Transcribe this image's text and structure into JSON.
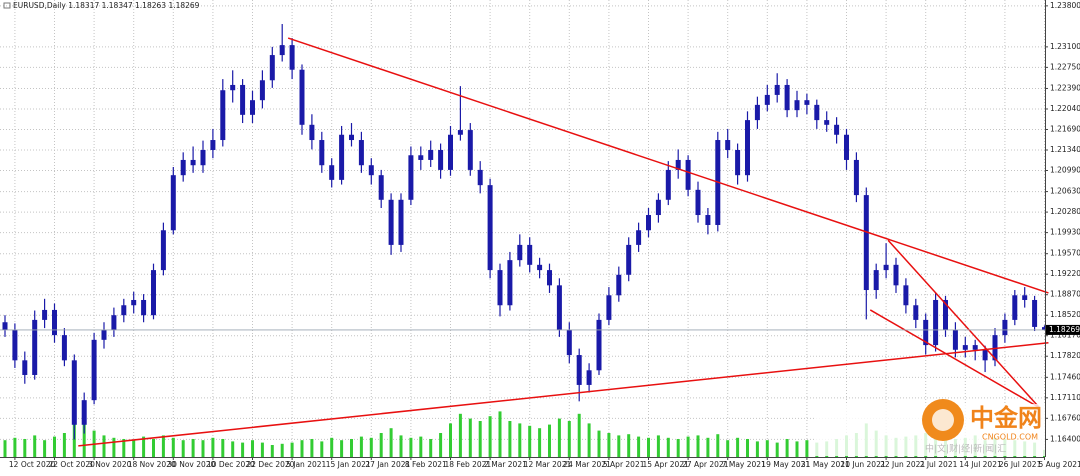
{
  "chart_data": {
    "type": "candlestick",
    "title": "EURUSD,Daily",
    "candle_color": "#1a1aa8",
    "volume_color": "#33cc33",
    "grid": true,
    "ylim": [
      1.161,
      1.239
    ],
    "yticks": [
      {
        "value": 1.238,
        "label": "1.23800"
      },
      {
        "value": 1.231,
        "label": "1.23100"
      },
      {
        "value": 1.2275,
        "label": "1.22750"
      },
      {
        "value": 1.2239,
        "label": "1.22390"
      },
      {
        "value": 1.2204,
        "label": "1.22040"
      },
      {
        "value": 1.2169,
        "label": "1.21690"
      },
      {
        "value": 1.2134,
        "label": "1.21340"
      },
      {
        "value": 1.2099,
        "label": "1.20990"
      },
      {
        "value": 1.2063,
        "label": "1.20630"
      },
      {
        "value": 1.2028,
        "label": "1.20280"
      },
      {
        "value": 1.1993,
        "label": "1.19930"
      },
      {
        "value": 1.1957,
        "label": "1.19570"
      },
      {
        "value": 1.1922,
        "label": "1.19220"
      },
      {
        "value": 1.1887,
        "label": "1.18870"
      },
      {
        "value": 1.1852,
        "label": "1.18520"
      },
      {
        "value": 1.1817,
        "label": "1.18170"
      },
      {
        "value": 1.1782,
        "label": "1.17820"
      },
      {
        "value": 1.1746,
        "label": "1.17460"
      },
      {
        "value": 1.1711,
        "label": "1.17110"
      },
      {
        "value": 1.1676,
        "label": "1.16760"
      },
      {
        "value": 1.164,
        "label": "1.16400"
      }
    ],
    "categories": [
      null,
      "12 Oct 2020",
      null,
      null,
      null,
      "22 Oct 2020",
      null,
      null,
      null,
      "3 Nov 2020",
      null,
      null,
      null,
      "18 Nov 2020",
      null,
      null,
      null,
      "30 Nov 2020",
      null,
      null,
      null,
      "10 Dec 2020",
      null,
      null,
      null,
      "22 Dec 2020",
      null,
      null,
      null,
      "5 Jan 2021",
      null,
      null,
      null,
      "15 Jan 2021",
      null,
      null,
      null,
      "27 Jan 2021",
      null,
      null,
      null,
      "8 Feb 2021",
      null,
      null,
      null,
      "18 Feb 2021",
      null,
      null,
      null,
      "2 Mar 2021",
      null,
      null,
      null,
      "12 Mar 2021",
      null,
      null,
      null,
      "24 Mar 2021",
      null,
      null,
      null,
      "5 Apr 2021",
      null,
      null,
      null,
      "15 Apr 2021",
      null,
      null,
      null,
      "27 Apr 2021",
      null,
      null,
      null,
      "7 May 2021",
      null,
      null,
      null,
      "19 May 2021",
      null,
      null,
      null,
      "31 May 2021",
      null,
      null,
      null,
      "10 Jun 2021",
      null,
      null,
      null,
      "22 Jun 2021",
      null,
      null,
      null,
      "2 Jul 2021",
      null,
      null,
      null,
      "14 Jul 2021",
      null,
      null,
      null,
      "26 Jul 2021",
      null,
      null,
      null,
      "5 Aug 2021"
    ],
    "candles": [
      [
        1.184,
        1.1852,
        1.1815,
        1.1827
      ],
      [
        1.1827,
        1.1838,
        1.1762,
        1.1775
      ],
      [
        1.1775,
        1.179,
        1.1735,
        1.175
      ],
      [
        1.175,
        1.186,
        1.1742,
        1.1844
      ],
      [
        1.1844,
        1.188,
        1.183,
        1.1861
      ],
      [
        1.1861,
        1.1872,
        1.1805,
        1.1818
      ],
      [
        1.1818,
        1.183,
        1.1765,
        1.1775
      ],
      [
        1.1775,
        1.1785,
        1.164,
        1.1665
      ],
      [
        1.1665,
        1.172,
        1.165,
        1.1707
      ],
      [
        1.1707,
        1.1822,
        1.17,
        1.181
      ],
      [
        1.181,
        1.184,
        1.1795,
        1.1827
      ],
      [
        1.1827,
        1.1865,
        1.1815,
        1.1852
      ],
      [
        1.1852,
        1.188,
        1.184,
        1.1869
      ],
      [
        1.1869,
        1.1892,
        1.1855,
        1.1878
      ],
      [
        1.1878,
        1.1888,
        1.184,
        1.1852
      ],
      [
        1.1852,
        1.194,
        1.1845,
        1.1929
      ],
      [
        1.1929,
        1.201,
        1.192,
        1.1997
      ],
      [
        1.1997,
        1.2105,
        1.199,
        1.2091
      ],
      [
        1.2091,
        1.213,
        1.208,
        1.2117
      ],
      [
        1.2117,
        1.214,
        1.2095,
        1.2108
      ],
      [
        1.2108,
        1.215,
        1.2095,
        1.2134
      ],
      [
        1.2134,
        1.217,
        1.212,
        1.2151
      ],
      [
        1.2151,
        1.2255,
        1.214,
        1.2236
      ],
      [
        1.2236,
        1.227,
        1.2215,
        1.2245
      ],
      [
        1.2245,
        1.2255,
        1.218,
        1.2194
      ],
      [
        1.2194,
        1.2235,
        1.218,
        1.2219
      ],
      [
        1.2219,
        1.227,
        1.2205,
        1.2253
      ],
      [
        1.2253,
        1.231,
        1.224,
        1.2296
      ],
      [
        1.2296,
        1.2349,
        1.2285,
        1.2313
      ],
      [
        1.2313,
        1.2325,
        1.2255,
        1.2271
      ],
      [
        1.2271,
        1.228,
        1.216,
        1.2177
      ],
      [
        1.2177,
        1.2195,
        1.2135,
        1.2151
      ],
      [
        1.2151,
        1.2165,
        1.2095,
        1.2108
      ],
      [
        1.2108,
        1.212,
        1.207,
        1.2083
      ],
      [
        1.2083,
        1.2175,
        1.2075,
        1.216
      ],
      [
        1.216,
        1.218,
        1.214,
        1.2151
      ],
      [
        1.2151,
        1.2165,
        1.2095,
        1.2108
      ],
      [
        1.2108,
        1.212,
        1.2075,
        1.2091
      ],
      [
        1.2091,
        1.21,
        1.2035,
        1.2049
      ],
      [
        1.2049,
        1.206,
        1.1955,
        1.1972
      ],
      [
        1.1972,
        1.206,
        1.196,
        1.2049
      ],
      [
        1.2049,
        1.214,
        1.204,
        1.2125
      ],
      [
        1.2125,
        1.214,
        1.21,
        1.2117
      ],
      [
        1.2117,
        1.215,
        1.2105,
        1.2134
      ],
      [
        1.2134,
        1.2145,
        1.2085,
        1.21
      ],
      [
        1.21,
        1.2175,
        1.209,
        1.216
      ],
      [
        1.216,
        1.2243,
        1.215,
        1.2168
      ],
      [
        1.2168,
        1.218,
        1.209,
        1.21
      ],
      [
        1.21,
        1.2115,
        1.206,
        1.2074
      ],
      [
        1.2074,
        1.2085,
        1.1915,
        1.1929
      ],
      [
        1.1929,
        1.194,
        1.185,
        1.1869
      ],
      [
        1.1869,
        1.196,
        1.186,
        1.1946
      ],
      [
        1.1946,
        1.199,
        1.1935,
        1.1972
      ],
      [
        1.1972,
        1.1985,
        1.1925,
        1.1938
      ],
      [
        1.1938,
        1.195,
        1.1915,
        1.1929
      ],
      [
        1.1929,
        1.194,
        1.189,
        1.1903
      ],
      [
        1.1903,
        1.1915,
        1.1815,
        1.1827
      ],
      [
        1.1827,
        1.184,
        1.177,
        1.1784
      ],
      [
        1.1784,
        1.1795,
        1.1705,
        1.1733
      ],
      [
        1.1733,
        1.177,
        1.172,
        1.1758
      ],
      [
        1.1758,
        1.1855,
        1.175,
        1.1844
      ],
      [
        1.1844,
        1.19,
        1.1835,
        1.1886
      ],
      [
        1.1886,
        1.1935,
        1.1875,
        1.1921
      ],
      [
        1.1921,
        1.1985,
        1.191,
        1.1972
      ],
      [
        1.1972,
        1.201,
        1.196,
        1.1997
      ],
      [
        1.1997,
        1.2035,
        1.1985,
        1.2023
      ],
      [
        1.2023,
        1.206,
        1.201,
        1.2049
      ],
      [
        1.2049,
        1.2115,
        1.204,
        1.21
      ],
      [
        1.21,
        1.2135,
        1.2085,
        1.2117
      ],
      [
        1.2117,
        1.2125,
        1.2055,
        1.2066
      ],
      [
        1.2066,
        1.208,
        1.201,
        1.2023
      ],
      [
        1.2023,
        1.2035,
        1.199,
        1.2006
      ],
      [
        1.2006,
        1.2165,
        1.1995,
        1.2151
      ],
      [
        1.2151,
        1.217,
        1.212,
        1.2134
      ],
      [
        1.2134,
        1.2145,
        1.2075,
        1.2091
      ],
      [
        1.2091,
        1.22,
        1.208,
        1.2185
      ],
      [
        1.2185,
        1.2225,
        1.217,
        1.2211
      ],
      [
        1.2211,
        1.2245,
        1.22,
        1.2228
      ],
      [
        1.2228,
        1.2265,
        1.2215,
        1.2245
      ],
      [
        1.2245,
        1.2255,
        1.219,
        1.2202
      ],
      [
        1.2202,
        1.2235,
        1.219,
        1.2219
      ],
      [
        1.2219,
        1.223,
        1.2195,
        1.2211
      ],
      [
        1.2211,
        1.222,
        1.217,
        1.2185
      ],
      [
        1.2185,
        1.22,
        1.2165,
        1.2177
      ],
      [
        1.2177,
        1.219,
        1.2145,
        1.216
      ],
      [
        1.216,
        1.217,
        1.21,
        1.2117
      ],
      [
        1.2117,
        1.213,
        1.2045,
        1.2057
      ],
      [
        1.2057,
        1.207,
        1.1845,
        1.1895
      ],
      [
        1.1895,
        1.194,
        1.188,
        1.1929
      ],
      [
        1.1929,
        1.1975,
        1.1915,
        1.1938
      ],
      [
        1.1938,
        1.195,
        1.189,
        1.1903
      ],
      [
        1.1903,
        1.1915,
        1.1855,
        1.1869
      ],
      [
        1.1869,
        1.188,
        1.183,
        1.1844
      ],
      [
        1.1844,
        1.1855,
        1.1785,
        1.1801
      ],
      [
        1.1801,
        1.189,
        1.179,
        1.1878
      ],
      [
        1.1878,
        1.1885,
        1.1815,
        1.1827
      ],
      [
        1.1827,
        1.184,
        1.178,
        1.1793
      ],
      [
        1.1793,
        1.1815,
        1.178,
        1.1801
      ],
      [
        1.1801,
        1.181,
        1.1775,
        1.1793
      ],
      [
        1.1793,
        1.18,
        1.1755,
        1.1775
      ],
      [
        1.1775,
        1.183,
        1.1765,
        1.1818
      ],
      [
        1.1818,
        1.1855,
        1.1805,
        1.1844
      ],
      [
        1.1844,
        1.1895,
        1.1835,
        1.1886
      ],
      [
        1.1886,
        1.19,
        1.1865,
        1.1878
      ],
      [
        1.1878,
        1.1885,
        1.1825,
        1.1832
      ],
      [
        1.18317,
        1.18347,
        1.18263,
        1.18269
      ]
    ],
    "volumes": [
      14,
      16,
      15,
      18,
      14,
      17,
      20,
      38,
      30,
      22,
      18,
      16,
      15,
      14,
      17,
      15,
      18,
      16,
      14,
      15,
      14,
      16,
      15,
      13,
      12,
      14,
      12,
      10,
      11,
      12,
      14,
      15,
      13,
      16,
      14,
      15,
      17,
      16,
      20,
      24,
      18,
      16,
      17,
      15,
      20,
      28,
      36,
      32,
      30,
      34,
      38,
      30,
      28,
      26,
      24,
      27,
      32,
      30,
      36,
      28,
      22,
      20,
      18,
      19,
      17,
      16,
      18,
      16,
      15,
      17,
      18,
      16,
      19,
      14,
      16,
      15,
      13,
      14,
      12,
      15,
      13,
      14,
      12,
      13,
      15,
      18,
      20,
      28,
      22,
      18,
      16,
      17,
      18,
      20,
      16,
      17,
      15,
      16,
      18,
      14,
      16,
      15,
      14,
      13,
      12,
      6
    ],
    "trendlines": {
      "color": "#e81010",
      "lines": [
        [
          [
            28.6,
            1.2325
          ],
          [
            105.4,
            1.189
          ]
        ],
        [
          [
            89.2,
            1.198
          ],
          [
            104.5,
            1.1694
          ]
        ],
        [
          [
            87.4,
            1.1861
          ],
          [
            104.5,
            1.1694
          ]
        ],
        [
          [
            7.4,
            1.1629
          ],
          [
            105.4,
            1.1805
          ]
        ]
      ]
    }
  },
  "watermark": {
    "brand": "中金网",
    "site": "CNGOLD.COM",
    "slogan": "中|文|财|经|新|闻|汇"
  }
}
